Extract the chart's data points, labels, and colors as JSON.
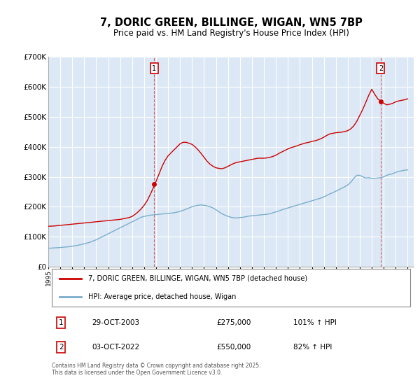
{
  "title": "7, DORIC GREEN, BILLINGE, WIGAN, WN5 7BP",
  "subtitle": "Price paid vs. HM Land Registry's House Price Index (HPI)",
  "title_fontsize": 10.5,
  "subtitle_fontsize": 8.5,
  "background_color": "#ffffff",
  "plot_bg_color": "#dce8f5",
  "red_color": "#cc0000",
  "blue_color": "#7aadcc",
  "grid_color": "#ffffff",
  "xlim": [
    1995,
    2025.5
  ],
  "ylim": [
    0,
    700000
  ],
  "yticks": [
    0,
    100000,
    200000,
    300000,
    400000,
    500000,
    600000,
    700000
  ],
  "ytick_labels": [
    "£0",
    "£100K",
    "£200K",
    "£300K",
    "£400K",
    "£500K",
    "£600K",
    "£700K"
  ],
  "xticks": [
    1995,
    1996,
    1997,
    1998,
    1999,
    2000,
    2001,
    2002,
    2003,
    2004,
    2005,
    2006,
    2007,
    2008,
    2009,
    2010,
    2011,
    2012,
    2013,
    2014,
    2015,
    2016,
    2017,
    2018,
    2019,
    2020,
    2021,
    2022,
    2023,
    2024,
    2025
  ],
  "marker1_x": 2003.83,
  "marker1_y": 275000,
  "marker2_x": 2022.75,
  "marker2_y": 550000,
  "marker1_date": "29-OCT-2003",
  "marker1_price": "£275,000",
  "marker1_hpi": "101% ↑ HPI",
  "marker2_date": "03-OCT-2022",
  "marker2_price": "£550,000",
  "marker2_hpi": "82% ↑ HPI",
  "legend_red_label": "7, DORIC GREEN, BILLINGE, WIGAN, WN5 7BP (detached house)",
  "legend_blue_label": "HPI: Average price, detached house, Wigan",
  "footer": "Contains HM Land Registry data © Crown copyright and database right 2025.\nThis data is licensed under the Open Government Licence v3.0.",
  "red_line_x": [
    1995.0,
    1995.25,
    1995.5,
    1995.75,
    1996.0,
    1996.25,
    1996.5,
    1996.75,
    1997.0,
    1997.25,
    1997.5,
    1997.75,
    1998.0,
    1998.25,
    1998.5,
    1998.75,
    1999.0,
    1999.25,
    1999.5,
    1999.75,
    2000.0,
    2000.25,
    2000.5,
    2000.75,
    2001.0,
    2001.25,
    2001.5,
    2001.75,
    2002.0,
    2002.25,
    2002.5,
    2002.75,
    2003.0,
    2003.25,
    2003.5,
    2003.75,
    2004.0,
    2004.25,
    2004.5,
    2004.75,
    2005.0,
    2005.25,
    2005.5,
    2005.75,
    2006.0,
    2006.25,
    2006.5,
    2006.75,
    2007.0,
    2007.25,
    2007.5,
    2007.75,
    2008.0,
    2008.25,
    2008.5,
    2008.75,
    2009.0,
    2009.25,
    2009.5,
    2009.75,
    2010.0,
    2010.25,
    2010.5,
    2010.75,
    2011.0,
    2011.25,
    2011.5,
    2011.75,
    2012.0,
    2012.25,
    2012.5,
    2012.75,
    2013.0,
    2013.25,
    2013.5,
    2013.75,
    2014.0,
    2014.25,
    2014.5,
    2014.75,
    2015.0,
    2015.25,
    2015.5,
    2015.75,
    2016.0,
    2016.25,
    2016.5,
    2016.75,
    2017.0,
    2017.25,
    2017.5,
    2017.75,
    2018.0,
    2018.25,
    2018.5,
    2018.75,
    2019.0,
    2019.25,
    2019.5,
    2019.75,
    2020.0,
    2020.25,
    2020.5,
    2020.75,
    2021.0,
    2021.25,
    2021.5,
    2021.75,
    2022.0,
    2022.25,
    2022.5,
    2022.75,
    2023.0,
    2023.25,
    2023.5,
    2023.75,
    2024.0,
    2024.25,
    2024.5,
    2024.75,
    2025.0
  ],
  "red_line_y": [
    135000,
    135500,
    136000,
    137000,
    138000,
    139000,
    140000,
    141000,
    142000,
    143000,
    144000,
    145000,
    146000,
    147000,
    148000,
    149000,
    150000,
    151000,
    152000,
    153000,
    154000,
    155000,
    156000,
    157000,
    158000,
    160000,
    162000,
    164000,
    168000,
    175000,
    183000,
    193000,
    205000,
    220000,
    240000,
    262000,
    285000,
    310000,
    335000,
    355000,
    370000,
    380000,
    390000,
    400000,
    410000,
    415000,
    415000,
    412000,
    408000,
    400000,
    390000,
    378000,
    365000,
    352000,
    342000,
    335000,
    330000,
    328000,
    327000,
    330000,
    335000,
    340000,
    345000,
    348000,
    350000,
    352000,
    354000,
    356000,
    358000,
    360000,
    362000,
    362000,
    362000,
    363000,
    365000,
    368000,
    372000,
    378000,
    383000,
    388000,
    393000,
    397000,
    400000,
    403000,
    407000,
    410000,
    413000,
    415000,
    418000,
    420000,
    423000,
    427000,
    432000,
    438000,
    443000,
    445000,
    447000,
    448000,
    449000,
    451000,
    454000,
    460000,
    470000,
    485000,
    505000,
    525000,
    548000,
    572000,
    592000,
    575000,
    560000,
    552000,
    545000,
    540000,
    542000,
    545000,
    550000,
    553000,
    555000,
    557000,
    560000
  ],
  "blue_line_x": [
    1995.0,
    1995.25,
    1995.5,
    1995.75,
    1996.0,
    1996.25,
    1996.5,
    1996.75,
    1997.0,
    1997.25,
    1997.5,
    1997.75,
    1998.0,
    1998.25,
    1998.5,
    1998.75,
    1999.0,
    1999.25,
    1999.5,
    1999.75,
    2000.0,
    2000.25,
    2000.5,
    2000.75,
    2001.0,
    2001.25,
    2001.5,
    2001.75,
    2002.0,
    2002.25,
    2002.5,
    2002.75,
    2003.0,
    2003.25,
    2003.5,
    2003.75,
    2004.0,
    2004.25,
    2004.5,
    2004.75,
    2005.0,
    2005.25,
    2005.5,
    2005.75,
    2006.0,
    2006.25,
    2006.5,
    2006.75,
    2007.0,
    2007.25,
    2007.5,
    2007.75,
    2008.0,
    2008.25,
    2008.5,
    2008.75,
    2009.0,
    2009.25,
    2009.5,
    2009.75,
    2010.0,
    2010.25,
    2010.5,
    2010.75,
    2011.0,
    2011.25,
    2011.5,
    2011.75,
    2012.0,
    2012.25,
    2012.5,
    2012.75,
    2013.0,
    2013.25,
    2013.5,
    2013.75,
    2014.0,
    2014.25,
    2014.5,
    2014.75,
    2015.0,
    2015.25,
    2015.5,
    2015.75,
    2016.0,
    2016.25,
    2016.5,
    2016.75,
    2017.0,
    2017.25,
    2017.5,
    2017.75,
    2018.0,
    2018.25,
    2018.5,
    2018.75,
    2019.0,
    2019.25,
    2019.5,
    2019.75,
    2020.0,
    2020.25,
    2020.5,
    2020.75,
    2021.0,
    2021.25,
    2021.5,
    2021.75,
    2022.0,
    2022.25,
    2022.5,
    2022.75,
    2023.0,
    2023.25,
    2023.5,
    2023.75,
    2024.0,
    2024.25,
    2024.5,
    2024.75,
    2025.0
  ],
  "blue_line_y": [
    62000,
    62000,
    63000,
    63500,
    64000,
    65000,
    66000,
    67000,
    68500,
    70000,
    72000,
    74000,
    76500,
    79000,
    82000,
    86000,
    90000,
    95000,
    100000,
    105000,
    110000,
    115000,
    120000,
    125000,
    130000,
    135000,
    140000,
    145000,
    150000,
    155000,
    160000,
    165000,
    168000,
    170000,
    172000,
    173000,
    174000,
    175000,
    176000,
    177000,
    178000,
    179000,
    180000,
    182000,
    185000,
    188000,
    192000,
    196000,
    200000,
    203000,
    205000,
    206000,
    205000,
    203000,
    200000,
    196000,
    190000,
    183000,
    177000,
    172000,
    168000,
    165000,
    163000,
    163000,
    164000,
    165000,
    167000,
    169000,
    170000,
    171000,
    172000,
    173000,
    174000,
    175000,
    177000,
    180000,
    183000,
    186000,
    190000,
    193000,
    196000,
    199000,
    202000,
    205000,
    208000,
    211000,
    214000,
    217000,
    220000,
    223000,
    226000,
    229000,
    233000,
    238000,
    243000,
    247000,
    252000,
    257000,
    262000,
    267000,
    273000,
    282000,
    295000,
    305000,
    305000,
    300000,
    296000,
    297000,
    295000,
    295000,
    296000,
    297000,
    300000,
    305000,
    308000,
    310000,
    315000,
    318000,
    320000,
    322000,
    323000
  ]
}
